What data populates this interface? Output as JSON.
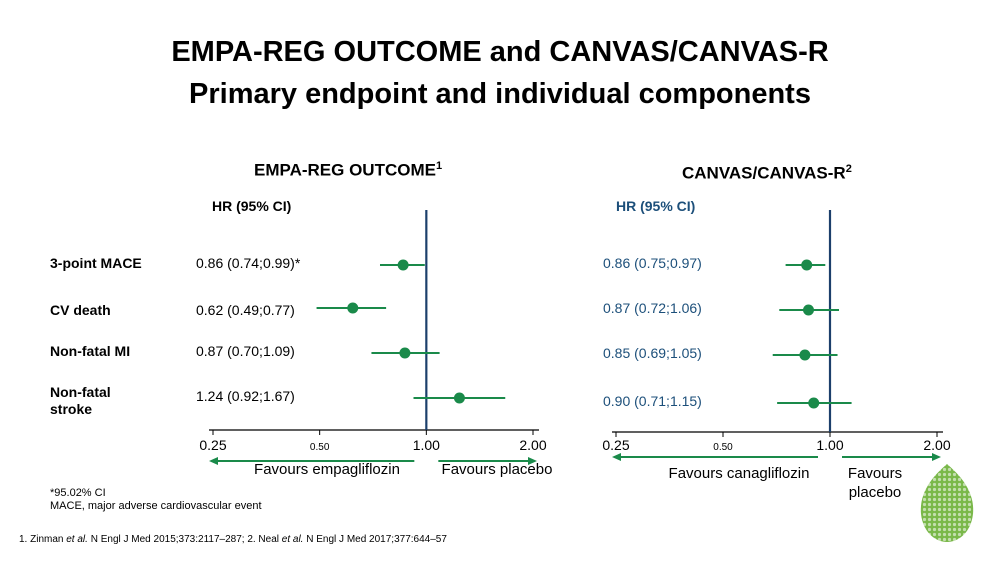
{
  "title": {
    "line1": "EMPA-REG OUTCOME and CANVAS/CANVAS-R",
    "line2": "Primary endpoint and individual components"
  },
  "panels": {
    "left": {
      "title": "EMPA-REG OUTCOME",
      "sup": "1"
    },
    "right": {
      "title": "CANVAS/CANVAS-R",
      "sup": "2"
    }
  },
  "footnote": {
    "line1": "*95.02% CI",
    "line2": "MACE, major adverse cardiovascular event"
  },
  "reference": {
    "part1": "1. Zinman ",
    "etal1": "et al.",
    "part2": " N Engl J Med 2015;373:2117–287; 2. Neal ",
    "etal2": "et al.",
    "part3": " N Engl J Med 2017;377:644–57"
  },
  "colors": {
    "point": "#1a8a4a",
    "reference_line": "#1c3f6b",
    "right_text": "#1c4f7a",
    "arrow": "#1a8a4a",
    "logo": "#7ab84a"
  },
  "logo_icon": "leaf-logo-icon",
  "chart_data": [
    {
      "type": "forest",
      "title": "EMPA-REG OUTCOME",
      "column_header": "HR (95% CI)",
      "x_scale": "log",
      "xlim": [
        0.25,
        2.0
      ],
      "reference_value": 1.0,
      "ticks": [
        {
          "value": 0.25,
          "label": "0.25"
        },
        {
          "value": 0.5,
          "label": "0.50"
        },
        {
          "value": 1.0,
          "label": "1.00"
        },
        {
          "value": 2.0,
          "label": "2.00"
        }
      ],
      "direction_labels": {
        "left": "Favours empagliflozin",
        "right": "Favours placebo"
      },
      "rows": [
        {
          "label": "3-point MACE",
          "text": "0.86 (0.74;0.99)*",
          "hr": 0.86,
          "lo": 0.74,
          "hi": 0.99
        },
        {
          "label": "CV death",
          "text": "0.62 (0.49;0.77)",
          "hr": 0.62,
          "lo": 0.49,
          "hi": 0.77
        },
        {
          "label": "Non-fatal MI",
          "text": "0.87 (0.70;1.09)",
          "hr": 0.87,
          "lo": 0.7,
          "hi": 1.09
        },
        {
          "label": "Non-fatal\nstroke",
          "text": "1.24 (0.92;1.67)",
          "hr": 1.24,
          "lo": 0.92,
          "hi": 1.67
        }
      ]
    },
    {
      "type": "forest",
      "title": "CANVAS/CANVAS-R",
      "column_header": "HR (95% CI)",
      "x_scale": "log",
      "xlim": [
        0.25,
        2.0
      ],
      "reference_value": 1.0,
      "ticks": [
        {
          "value": 0.25,
          "label": "0.25"
        },
        {
          "value": 0.5,
          "label": "0.50"
        },
        {
          "value": 1.0,
          "label": "1.00"
        },
        {
          "value": 2.0,
          "label": "2.00"
        }
      ],
      "direction_labels": {
        "left": "Favours canagliflozin",
        "right": "Favours\nplacebo"
      },
      "rows": [
        {
          "text": "0.86 (0.75;0.97)",
          "hr": 0.86,
          "lo": 0.75,
          "hi": 0.97
        },
        {
          "text": "0.87 (0.72;1.06)",
          "hr": 0.87,
          "lo": 0.72,
          "hi": 1.06
        },
        {
          "text": "0.85 (0.69;1.05)",
          "hr": 0.85,
          "lo": 0.69,
          "hi": 1.05
        },
        {
          "text": "0.90 (0.71;1.15)",
          "hr": 0.9,
          "lo": 0.71,
          "hi": 1.15
        }
      ]
    }
  ]
}
